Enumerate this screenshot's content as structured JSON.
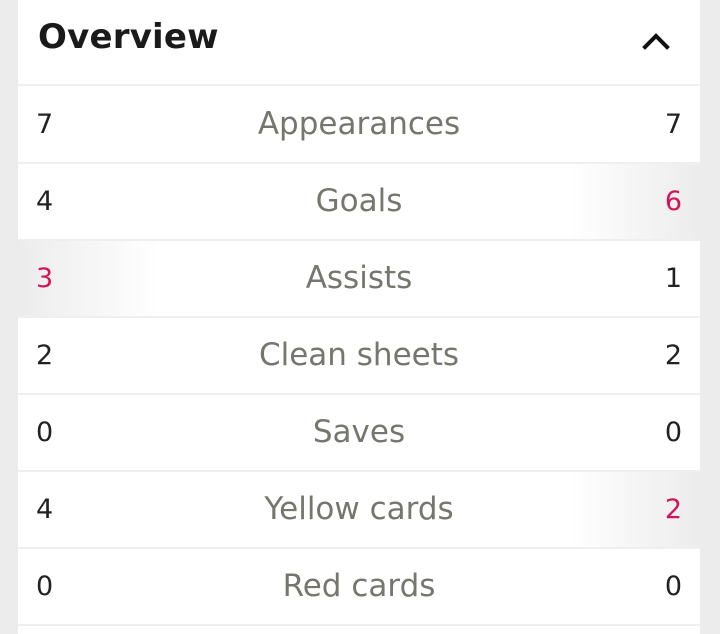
{
  "header": {
    "title": "Overview",
    "toggle_icon": "chevron-up-icon"
  },
  "colors": {
    "highlight": "#d4145a",
    "label": "#76766f",
    "value": "#222222"
  },
  "stats": [
    {
      "label": "Appearances",
      "left": "7",
      "right": "7",
      "leader": "none"
    },
    {
      "label": "Goals",
      "left": "4",
      "right": "6",
      "leader": "right"
    },
    {
      "label": "Assists",
      "left": "3",
      "right": "1",
      "leader": "left"
    },
    {
      "label": "Clean sheets",
      "left": "2",
      "right": "2",
      "leader": "none"
    },
    {
      "label": "Saves",
      "left": "0",
      "right": "0",
      "leader": "none"
    },
    {
      "label": "Yellow cards",
      "left": "4",
      "right": "2",
      "leader": "right"
    },
    {
      "label": "Red cards",
      "left": "0",
      "right": "0",
      "leader": "none"
    }
  ]
}
